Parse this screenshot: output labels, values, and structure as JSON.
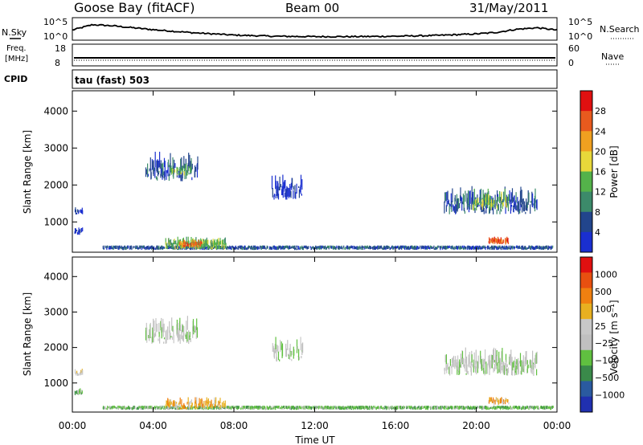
{
  "header": {
    "station": "Goose Bay (fitACF)",
    "beam": "Beam 00",
    "date": "31/May/2011"
  },
  "left_labels": {
    "nsky": "N.Sky",
    "freq": "Freq.",
    "freq_unit": "[MHz]",
    "cpid": "CPID"
  },
  "right_labels": {
    "nsearch": "N.Search",
    "nave": "Nave"
  },
  "cpid_text": "tau (fast) 503",
  "colors": {
    "power": [
      "#1a2fd0",
      "#22458c",
      "#3c8a6a",
      "#54b24a",
      "#e8d83a",
      "#f0a020",
      "#e85a1e",
      "#e01010"
    ],
    "velocity": [
      "#2030b0",
      "#2a5aa0",
      "#3a8a4a",
      "#60c040",
      "#c0c0c0",
      "#c8c8c8",
      "#e8b020",
      "#f08010",
      "#e85010",
      "#e01010"
    ]
  },
  "chart_data": [
    {
      "type": "line",
      "name": "noise",
      "y_left_ticks": [
        "10^5",
        "10^0"
      ],
      "y_right_ticks": [
        "10^5",
        "10^0"
      ],
      "x_hours": [
        0,
        1,
        2,
        3,
        4,
        5,
        6,
        8,
        10,
        12,
        14,
        16,
        18,
        19,
        20,
        21,
        22,
        23,
        24
      ],
      "values_log": [
        2.2,
        3.6,
        3.3,
        2.8,
        2.3,
        1.9,
        1.5,
        0.9,
        0.6,
        0.5,
        0.5,
        0.6,
        0.8,
        1.0,
        1.2,
        1.6,
        2.4,
        2.8,
        2.2
      ]
    },
    {
      "type": "line",
      "name": "freq_nave",
      "y_left_ticks": [
        "18",
        "8"
      ],
      "y_right_ticks": [
        "60",
        "0"
      ],
      "x_hours": [
        0,
        24
      ],
      "freq_mhz": [
        10.8,
        10.8
      ],
      "nave": [
        14,
        14
      ]
    },
    {
      "type": "heatmap",
      "title": "",
      "ylabel": "Slant Range [km]",
      "xlabel": "Time UT",
      "xlim_hours": [
        0,
        24
      ],
      "ylim_km": [
        180,
        4550
      ],
      "x_tick_labels": [
        "00:00",
        "04:00",
        "08:00",
        "12:00",
        "16:00",
        "20:00",
        "00:00"
      ],
      "x_tick_hours": [
        0,
        4,
        8,
        12,
        16,
        20,
        24
      ],
      "y_tick_values": [
        1000,
        2000,
        3000,
        4000
      ],
      "colorbar_label": "Power [dB]",
      "colorbar_ticks": [
        "4",
        "8",
        "12",
        "16",
        "20",
        "24",
        "28"
      ],
      "regions": [
        {
          "t0": 1.5,
          "t1": 23.8,
          "r0": 240,
          "r1": 360,
          "level": 1,
          "density": 0.75
        },
        {
          "t0": 4.6,
          "t1": 7.6,
          "r0": 250,
          "r1": 600,
          "level": 3,
          "density": 0.8
        },
        {
          "t0": 5.3,
          "t1": 6.4,
          "r0": 300,
          "r1": 520,
          "level": 6,
          "density": 0.7
        },
        {
          "t0": 3.6,
          "t1": 6.2,
          "r0": 2100,
          "r1": 2900,
          "level": 1,
          "density": 0.55
        },
        {
          "t0": 4.8,
          "t1": 5.9,
          "r0": 2250,
          "r1": 2550,
          "level": 3,
          "density": 0.5
        },
        {
          "t0": 9.8,
          "t1": 11.4,
          "r0": 1600,
          "r1": 2300,
          "level": 0,
          "density": 0.5
        },
        {
          "t0": 18.4,
          "t1": 23.0,
          "r0": 1200,
          "r1": 2000,
          "level": 1,
          "density": 0.6
        },
        {
          "t0": 19.8,
          "t1": 21.6,
          "r0": 1300,
          "r1": 1900,
          "level": 3,
          "density": 0.55
        },
        {
          "t0": 20.6,
          "t1": 21.6,
          "r0": 380,
          "r1": 600,
          "level": 6,
          "density": 0.7
        },
        {
          "t0": 0.1,
          "t1": 0.5,
          "r0": 1200,
          "r1": 1400,
          "level": 0,
          "density": 0.6
        },
        {
          "t0": 0.1,
          "t1": 0.5,
          "r0": 650,
          "r1": 850,
          "level": 0,
          "density": 0.6
        }
      ]
    },
    {
      "type": "heatmap",
      "title": "",
      "ylabel": "Slant Range [km]",
      "xlabel": "Time UT",
      "xlim_hours": [
        0,
        24
      ],
      "ylim_km": [
        180,
        4550
      ],
      "x_tick_labels": [
        "00:00",
        "04:00",
        "08:00",
        "12:00",
        "16:00",
        "20:00",
        "00:00"
      ],
      "x_tick_hours": [
        0,
        4,
        8,
        12,
        16,
        20,
        24
      ],
      "y_tick_values": [
        1000,
        2000,
        3000,
        4000
      ],
      "colorbar_label": "Velocity [m s⁻¹]",
      "colorbar_ticks": [
        "1000",
        "500",
        "100",
        "25",
        "−25",
        "−100",
        "−500",
        "−1000"
      ],
      "regions": [
        {
          "t0": 1.5,
          "t1": 23.8,
          "r0": 240,
          "r1": 360,
          "level": 3,
          "density": 0.75
        },
        {
          "t0": 4.6,
          "t1": 7.6,
          "r0": 250,
          "r1": 600,
          "level": 6,
          "density": 0.6
        },
        {
          "t0": 3.6,
          "t1": 6.2,
          "r0": 2100,
          "r1": 2900,
          "level": 4,
          "density": 0.55
        },
        {
          "t0": 9.8,
          "t1": 11.4,
          "r0": 1600,
          "r1": 2300,
          "level": 4,
          "density": 0.5
        },
        {
          "t0": 18.4,
          "t1": 23.0,
          "r0": 1200,
          "r1": 2000,
          "level": 4,
          "density": 0.6
        },
        {
          "t0": 20.6,
          "t1": 21.6,
          "r0": 380,
          "r1": 600,
          "level": 6,
          "density": 0.6
        },
        {
          "t0": 0.1,
          "t1": 0.5,
          "r0": 1200,
          "r1": 1400,
          "level": 5,
          "density": 0.6
        },
        {
          "t0": 0.1,
          "t1": 0.5,
          "r0": 650,
          "r1": 850,
          "level": 3,
          "density": 0.6
        }
      ]
    }
  ]
}
